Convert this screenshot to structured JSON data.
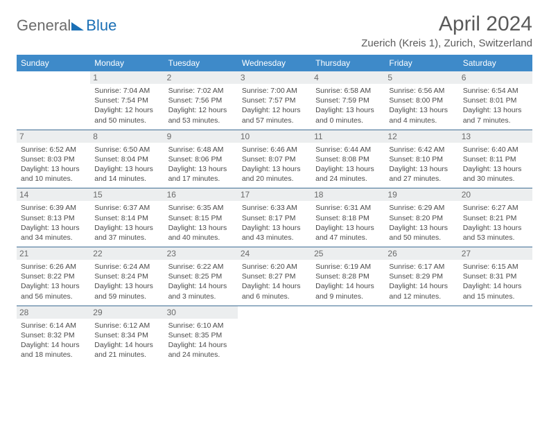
{
  "logo": {
    "word1": "General",
    "word2": "Blue"
  },
  "title": "April 2024",
  "location": "Zuerich (Kreis 1), Zurich, Switzerland",
  "colors": {
    "header_bg": "#3e8ac9",
    "header_text": "#ffffff",
    "daynum_bg": "#eceeef",
    "daynum_text": "#6a6a6a",
    "cell_border": "#3e6d94",
    "logo_gray": "#6b6b6b",
    "logo_blue": "#1a6fb5",
    "title_color": "#5a5a5a"
  },
  "columns": [
    "Sunday",
    "Monday",
    "Tuesday",
    "Wednesday",
    "Thursday",
    "Friday",
    "Saturday"
  ],
  "weeks": [
    [
      null,
      {
        "n": "1",
        "sr": "7:04 AM",
        "ss": "7:54 PM",
        "dl": "12 hours and 50 minutes."
      },
      {
        "n": "2",
        "sr": "7:02 AM",
        "ss": "7:56 PM",
        "dl": "12 hours and 53 minutes."
      },
      {
        "n": "3",
        "sr": "7:00 AM",
        "ss": "7:57 PM",
        "dl": "12 hours and 57 minutes."
      },
      {
        "n": "4",
        "sr": "6:58 AM",
        "ss": "7:59 PM",
        "dl": "13 hours and 0 minutes."
      },
      {
        "n": "5",
        "sr": "6:56 AM",
        "ss": "8:00 PM",
        "dl": "13 hours and 4 minutes."
      },
      {
        "n": "6",
        "sr": "6:54 AM",
        "ss": "8:01 PM",
        "dl": "13 hours and 7 minutes."
      }
    ],
    [
      {
        "n": "7",
        "sr": "6:52 AM",
        "ss": "8:03 PM",
        "dl": "13 hours and 10 minutes."
      },
      {
        "n": "8",
        "sr": "6:50 AM",
        "ss": "8:04 PM",
        "dl": "13 hours and 14 minutes."
      },
      {
        "n": "9",
        "sr": "6:48 AM",
        "ss": "8:06 PM",
        "dl": "13 hours and 17 minutes."
      },
      {
        "n": "10",
        "sr": "6:46 AM",
        "ss": "8:07 PM",
        "dl": "13 hours and 20 minutes."
      },
      {
        "n": "11",
        "sr": "6:44 AM",
        "ss": "8:08 PM",
        "dl": "13 hours and 24 minutes."
      },
      {
        "n": "12",
        "sr": "6:42 AM",
        "ss": "8:10 PM",
        "dl": "13 hours and 27 minutes."
      },
      {
        "n": "13",
        "sr": "6:40 AM",
        "ss": "8:11 PM",
        "dl": "13 hours and 30 minutes."
      }
    ],
    [
      {
        "n": "14",
        "sr": "6:39 AM",
        "ss": "8:13 PM",
        "dl": "13 hours and 34 minutes."
      },
      {
        "n": "15",
        "sr": "6:37 AM",
        "ss": "8:14 PM",
        "dl": "13 hours and 37 minutes."
      },
      {
        "n": "16",
        "sr": "6:35 AM",
        "ss": "8:15 PM",
        "dl": "13 hours and 40 minutes."
      },
      {
        "n": "17",
        "sr": "6:33 AM",
        "ss": "8:17 PM",
        "dl": "13 hours and 43 minutes."
      },
      {
        "n": "18",
        "sr": "6:31 AM",
        "ss": "8:18 PM",
        "dl": "13 hours and 47 minutes."
      },
      {
        "n": "19",
        "sr": "6:29 AM",
        "ss": "8:20 PM",
        "dl": "13 hours and 50 minutes."
      },
      {
        "n": "20",
        "sr": "6:27 AM",
        "ss": "8:21 PM",
        "dl": "13 hours and 53 minutes."
      }
    ],
    [
      {
        "n": "21",
        "sr": "6:26 AM",
        "ss": "8:22 PM",
        "dl": "13 hours and 56 minutes."
      },
      {
        "n": "22",
        "sr": "6:24 AM",
        "ss": "8:24 PM",
        "dl": "13 hours and 59 minutes."
      },
      {
        "n": "23",
        "sr": "6:22 AM",
        "ss": "8:25 PM",
        "dl": "14 hours and 3 minutes."
      },
      {
        "n": "24",
        "sr": "6:20 AM",
        "ss": "8:27 PM",
        "dl": "14 hours and 6 minutes."
      },
      {
        "n": "25",
        "sr": "6:19 AM",
        "ss": "8:28 PM",
        "dl": "14 hours and 9 minutes."
      },
      {
        "n": "26",
        "sr": "6:17 AM",
        "ss": "8:29 PM",
        "dl": "14 hours and 12 minutes."
      },
      {
        "n": "27",
        "sr": "6:15 AM",
        "ss": "8:31 PM",
        "dl": "14 hours and 15 minutes."
      }
    ],
    [
      {
        "n": "28",
        "sr": "6:14 AM",
        "ss": "8:32 PM",
        "dl": "14 hours and 18 minutes."
      },
      {
        "n": "29",
        "sr": "6:12 AM",
        "ss": "8:34 PM",
        "dl": "14 hours and 21 minutes."
      },
      {
        "n": "30",
        "sr": "6:10 AM",
        "ss": "8:35 PM",
        "dl": "14 hours and 24 minutes."
      },
      null,
      null,
      null,
      null
    ]
  ],
  "labels": {
    "sunrise": "Sunrise:",
    "sunset": "Sunset:",
    "daylight": "Daylight:"
  }
}
